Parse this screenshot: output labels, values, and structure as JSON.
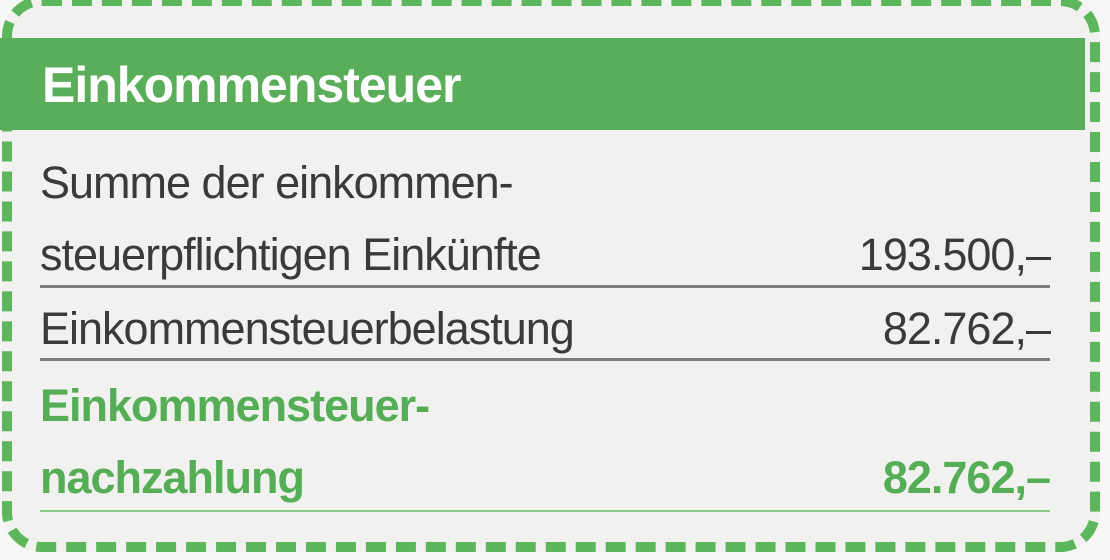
{
  "title": "Einkommensteuer",
  "rows": [
    {
      "label_line1": "Summe der einkommen-",
      "label_line2": "steuerpflichtigen Einkünfte",
      "value": "193.500,–"
    },
    {
      "label": "Einkommensteuerbelastung",
      "value": "82.762,–"
    },
    {
      "label_line1": "Einkommensteuer-",
      "label_line2": "nachzahlung",
      "value": "82.762,–",
      "highlight": true
    }
  ],
  "colors": {
    "accent": "#5aae5a",
    "text": "#3a3a3a",
    "background": "#f1f1ef"
  }
}
